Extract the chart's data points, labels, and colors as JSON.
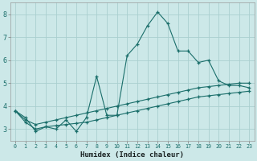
{
  "xlabel": "Humidex (Indice chaleur)",
  "background_color": "#cce8e8",
  "grid_color": "#aacfcf",
  "line_color": "#1a6e6a",
  "x_values": [
    0,
    1,
    2,
    3,
    4,
    5,
    6,
    7,
    8,
    9,
    10,
    11,
    12,
    13,
    14,
    15,
    16,
    17,
    18,
    19,
    20,
    21,
    22,
    23
  ],
  "line1": [
    3.8,
    3.5,
    2.9,
    3.1,
    3.0,
    3.4,
    2.9,
    3.5,
    5.3,
    3.6,
    3.6,
    6.2,
    6.7,
    7.5,
    8.1,
    7.6,
    6.4,
    6.4,
    5.9,
    6.0,
    5.1,
    4.9,
    4.9,
    4.8
  ],
  "line2": [
    3.8,
    3.4,
    3.2,
    3.3,
    3.4,
    3.5,
    3.6,
    3.7,
    3.8,
    3.9,
    4.0,
    4.1,
    4.2,
    4.3,
    4.4,
    4.5,
    4.6,
    4.7,
    4.8,
    4.85,
    4.9,
    4.95,
    5.0,
    5.0
  ],
  "line3": [
    3.8,
    3.3,
    3.0,
    3.1,
    3.15,
    3.2,
    3.25,
    3.3,
    3.4,
    3.5,
    3.6,
    3.7,
    3.8,
    3.9,
    4.0,
    4.1,
    4.2,
    4.3,
    4.4,
    4.45,
    4.5,
    4.55,
    4.6,
    4.65
  ],
  "ylim": [
    2.5,
    8.5
  ],
  "xlim": [
    -0.5,
    23.5
  ],
  "yticks": [
    3,
    4,
    5,
    6,
    7,
    8
  ],
  "xticks": [
    0,
    1,
    2,
    3,
    4,
    5,
    6,
    7,
    8,
    9,
    10,
    11,
    12,
    13,
    14,
    15,
    16,
    17,
    18,
    19,
    20,
    21,
    22,
    23
  ]
}
